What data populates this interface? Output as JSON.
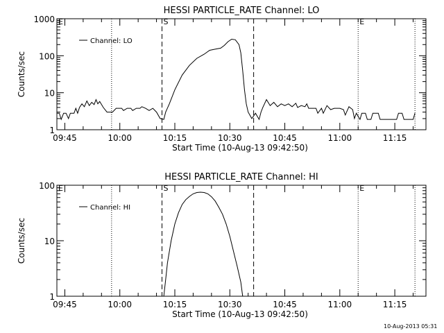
{
  "chart_data": [
    {
      "type": "line",
      "title": "HESSI PARTICLE_RATE Channel: LO",
      "ylabel": "Counts/sec",
      "xlabel": "Start Time (10-Aug-13 09:42:50)",
      "x_ticks": [
        "09:45",
        "10:00",
        "10:15",
        "10:30",
        "10:45",
        "11:00",
        "11:15"
      ],
      "y_ticks": [
        "1",
        "10",
        "100",
        "1000"
      ],
      "yscale": "log",
      "xlim": [
        "09:42:50",
        "11:23:30"
      ],
      "ylim": [
        1,
        1000
      ],
      "legend_location": "top-left",
      "series": [
        {
          "name": "Channel: LO",
          "points": [
            [
              "09:42:50",
              2.8
            ],
            [
              "09:43:30",
              2.8
            ],
            [
              "09:44:00",
              1.9
            ],
            [
              "09:44:40",
              2.8
            ],
            [
              "09:45:20",
              2.8
            ],
            [
              "09:46:00",
              2.0
            ],
            [
              "09:46:30",
              2.8
            ],
            [
              "09:47:30",
              2.8
            ],
            [
              "09:48:00",
              3.8
            ],
            [
              "09:48:30",
              2.8
            ],
            [
              "09:49:00",
              4.0
            ],
            [
              "09:49:40",
              5.0
            ],
            [
              "09:50:20",
              4.2
            ],
            [
              "09:51:00",
              6.0
            ],
            [
              "09:51:40",
              4.5
            ],
            [
              "09:52:20",
              5.5
            ],
            [
              "09:53:00",
              4.8
            ],
            [
              "09:53:30",
              6.5
            ],
            [
              "09:54:00",
              5.0
            ],
            [
              "09:54:30",
              5.8
            ],
            [
              "09:55:30",
              4.0
            ],
            [
              "09:56:30",
              3.0
            ],
            [
              "09:58:00",
              3.0
            ],
            [
              "09:59:00",
              3.8
            ],
            [
              "10:00:30",
              3.8
            ],
            [
              "10:01:00",
              3.3
            ],
            [
              "10:02:00",
              3.8
            ],
            [
              "10:03:00",
              3.8
            ],
            [
              "10:03:30",
              3.3
            ],
            [
              "10:04:30",
              3.8
            ],
            [
              "10:05:30",
              3.8
            ],
            [
              "10:06:00",
              4.2
            ],
            [
              "10:07:00",
              3.8
            ],
            [
              "10:08:00",
              3.3
            ],
            [
              "10:09:00",
              3.8
            ],
            [
              "10:10:00",
              3.0
            ],
            [
              "10:11:00",
              2.0
            ],
            [
              "10:12:00",
              1.9
            ],
            [
              "10:12:30",
              3.0
            ],
            [
              "10:13:30",
              5.0
            ],
            [
              "10:15:00",
              12
            ],
            [
              "10:17:00",
              30
            ],
            [
              "10:19:00",
              55
            ],
            [
              "10:21:00",
              85
            ],
            [
              "10:23:00",
              110
            ],
            [
              "10:24:30",
              140
            ],
            [
              "10:26:00",
              150
            ],
            [
              "10:27:30",
              160
            ],
            [
              "10:28:30",
              190
            ],
            [
              "10:29:30",
              240
            ],
            [
              "10:30:30",
              280
            ],
            [
              "10:31:30",
              270
            ],
            [
              "10:32:30",
              200
            ],
            [
              "10:33:00",
              120
            ],
            [
              "10:33:30",
              40
            ],
            [
              "10:34:00",
              12
            ],
            [
              "10:34:30",
              5.0
            ],
            [
              "10:35:00",
              3.0
            ],
            [
              "10:36:00",
              2.0
            ],
            [
              "10:37:00",
              2.8
            ],
            [
              "10:38:00",
              1.9
            ],
            [
              "10:38:30",
              3.0
            ],
            [
              "10:39:00",
              4.0
            ],
            [
              "10:40:00",
              6.5
            ],
            [
              "10:41:00",
              4.5
            ],
            [
              "10:42:00",
              5.5
            ],
            [
              "10:43:00",
              4.2
            ],
            [
              "10:44:00",
              5.0
            ],
            [
              "10:45:00",
              4.5
            ],
            [
              "10:46:00",
              5.0
            ],
            [
              "10:47:00",
              4.2
            ],
            [
              "10:48:00",
              5.2
            ],
            [
              "10:48:30",
              4.0
            ],
            [
              "10:49:30",
              4.5
            ],
            [
              "10:50:30",
              4.2
            ],
            [
              "10:51:00",
              5.0
            ],
            [
              "10:51:30",
              3.8
            ],
            [
              "10:53:30",
              3.8
            ],
            [
              "10:54:00",
              2.8
            ],
            [
              "10:55:00",
              3.8
            ],
            [
              "10:55:30",
              2.8
            ],
            [
              "10:56:30",
              4.5
            ],
            [
              "10:57:30",
              3.5
            ],
            [
              "10:58:30",
              3.8
            ],
            [
              "11:00:00",
              3.8
            ],
            [
              "11:01:00",
              3.5
            ],
            [
              "11:01:30",
              2.5
            ],
            [
              "11:02:30",
              4.2
            ],
            [
              "11:03:30",
              3.5
            ],
            [
              "11:04:00",
              2.0
            ],
            [
              "11:04:30",
              2.8
            ],
            [
              "11:05:30",
              1.9
            ],
            [
              "11:06:00",
              2.8
            ],
            [
              "11:07:00",
              2.8
            ],
            [
              "11:07:30",
              1.9
            ],
            [
              "11:08:30",
              1.9
            ],
            [
              "11:09:00",
              2.8
            ],
            [
              "11:10:30",
              2.8
            ],
            [
              "11:11:00",
              1.9
            ],
            [
              "11:15:30",
              1.9
            ],
            [
              "11:16:00",
              2.8
            ],
            [
              "11:17:00",
              2.8
            ],
            [
              "11:17:30",
              1.9
            ],
            [
              "11:20:00",
              1.9
            ],
            [
              "11:20:30",
              2.8
            ]
          ]
        }
      ],
      "markers": [
        {
          "label": "E",
          "time": "09:42:50",
          "style": "dotted"
        },
        {
          "label": "",
          "time": "09:57:45",
          "style": "dotted"
        },
        {
          "label": "S",
          "time": "10:11:30",
          "style": "dashed"
        },
        {
          "label": "",
          "time": "10:36:30",
          "style": "dashed"
        },
        {
          "label": "E",
          "time": "11:05:00",
          "style": "dotted"
        },
        {
          "label": "",
          "time": "11:20:30",
          "style": "dotted"
        }
      ]
    },
    {
      "type": "line",
      "title": "HESSI PARTICLE_RATE Channel: HI",
      "ylabel": "Counts/sec",
      "xlabel": "Start Time (10-Aug-13 09:42:50)",
      "x_ticks": [
        "09:45",
        "10:00",
        "10:15",
        "10:30",
        "10:45",
        "11:00",
        "11:15"
      ],
      "y_ticks": [
        "1",
        "10",
        "100"
      ],
      "yscale": "log",
      "xlim": [
        "09:42:50",
        "11:23:30"
      ],
      "ylim": [
        1,
        100
      ],
      "legend_location": "top-left",
      "series": [
        {
          "name": "Channel: HI",
          "points": [
            [
              "10:12:00",
              1.0
            ],
            [
              "10:12:30",
              2.0
            ],
            [
              "10:13:00",
              4.0
            ],
            [
              "10:14:00",
              10
            ],
            [
              "10:15:00",
              20
            ],
            [
              "10:16:00",
              32
            ],
            [
              "10:17:00",
              45
            ],
            [
              "10:18:00",
              55
            ],
            [
              "10:19:00",
              63
            ],
            [
              "10:20:00",
              70
            ],
            [
              "10:21:00",
              74
            ],
            [
              "10:22:00",
              75
            ],
            [
              "10:23:00",
              74
            ],
            [
              "10:24:00",
              70
            ],
            [
              "10:25:00",
              62
            ],
            [
              "10:26:00",
              52
            ],
            [
              "10:27:00",
              40
            ],
            [
              "10:28:00",
              30
            ],
            [
              "10:29:00",
              20
            ],
            [
              "10:30:00",
              12
            ],
            [
              "10:31:00",
              6.5
            ],
            [
              "10:32:00",
              3.5
            ],
            [
              "10:33:00",
              1.8
            ],
            [
              "10:33:30",
              1.0
            ]
          ]
        }
      ],
      "markers": [
        {
          "label": "E",
          "time": "09:42:50",
          "style": "dotted"
        },
        {
          "label": "",
          "time": "09:57:45",
          "style": "dotted"
        },
        {
          "label": "S",
          "time": "10:11:30",
          "style": "dashed"
        },
        {
          "label": "",
          "time": "10:36:30",
          "style": "dashed"
        },
        {
          "label": "E",
          "time": "11:05:00",
          "style": "dotted"
        },
        {
          "label": "",
          "time": "11:20:30",
          "style": "dotted"
        }
      ]
    }
  ],
  "footer": {
    "timestamp": "10-Aug-2013 05:31"
  }
}
